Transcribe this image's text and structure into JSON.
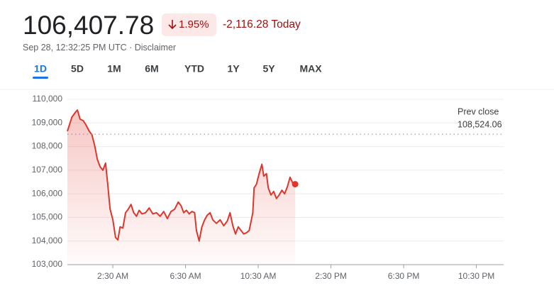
{
  "header": {
    "price": "106,407.78",
    "change_percent": "1.95%",
    "change_today": "-2,116.28 Today",
    "timestamp": "Sep 28, 12:32:25 PM UTC",
    "separator": "·",
    "disclaimer": "Disclaimer"
  },
  "tabs": [
    "1D",
    "5D",
    "1M",
    "6M",
    "YTD",
    "1Y",
    "5Y",
    "MAX"
  ],
  "selected_tab": 0,
  "chart_data": {
    "type": "line",
    "x": [
      0,
      0.25,
      0.45,
      0.55,
      0.7,
      0.87,
      1.0,
      1.2,
      1.35,
      1.5,
      1.65,
      1.8,
      1.95,
      2.1,
      2.22,
      2.35,
      2.5,
      2.65,
      2.78,
      2.9,
      3.05,
      3.2,
      3.35,
      3.5,
      3.65,
      3.8,
      3.95,
      4.1,
      4.3,
      4.5,
      4.7,
      4.9,
      5.1,
      5.3,
      5.5,
      5.7,
      5.9,
      6.1,
      6.25,
      6.4,
      6.55,
      6.7,
      6.85,
      7.0,
      7.1,
      7.25,
      7.4,
      7.55,
      7.7,
      7.85,
      8.0,
      8.2,
      8.4,
      8.6,
      8.8,
      8.95,
      9.1,
      9.25,
      9.4,
      9.55,
      9.7,
      9.85,
      10.0,
      10.2,
      10.27,
      10.4,
      10.55,
      10.7,
      10.8,
      10.95,
      11.05,
      11.2,
      11.35,
      11.5,
      11.65,
      11.8,
      11.95,
      12.1,
      12.25,
      12.4,
      12.53
    ],
    "series": [
      {
        "color": "#e0352b",
        "values": [
          108650,
          109250,
          109460,
          109550,
          109160,
          109100,
          108950,
          108650,
          108500,
          108050,
          107450,
          107150,
          107000,
          107300,
          106400,
          105350,
          104900,
          104150,
          104050,
          104600,
          104550,
          105200,
          105350,
          105550,
          105200,
          105050,
          105300,
          105150,
          105200,
          105400,
          105150,
          105200,
          105050,
          105250,
          104950,
          105250,
          105350,
          105650,
          105500,
          105200,
          105300,
          105150,
          105250,
          105200,
          104450,
          104000,
          104600,
          104900,
          105100,
          105200,
          104900,
          104750,
          104900,
          104650,
          104850,
          105200,
          104650,
          104300,
          104600,
          104450,
          104300,
          104350,
          104450,
          105200,
          106250,
          106400,
          106850,
          107250,
          106750,
          106850,
          106250,
          105950,
          106100,
          105800,
          105950,
          106150,
          106000,
          106300,
          106700,
          106450,
          106407.78
        ]
      }
    ],
    "xlim": [
      0,
      24
    ],
    "xticks": [
      {
        "value": 2.5,
        "label": "2:30 AM"
      },
      {
        "value": 6.5,
        "label": "6:30 AM"
      },
      {
        "value": 10.5,
        "label": "10:30 AM"
      },
      {
        "value": 14.5,
        "label": "2:30 PM"
      },
      {
        "value": 18.5,
        "label": "6:30 PM"
      },
      {
        "value": 22.5,
        "label": "10:30 PM"
      }
    ],
    "ylim": [
      103000,
      110000
    ],
    "yticks": [
      {
        "value": 103000,
        "label": "103,000"
      },
      {
        "value": 104000,
        "label": "104,000"
      },
      {
        "value": 105000,
        "label": "105,000"
      },
      {
        "value": 106000,
        "label": "106,000"
      },
      {
        "value": 107000,
        "label": "107,000"
      },
      {
        "value": 108000,
        "label": "108,000"
      },
      {
        "value": 109000,
        "label": "109,000"
      },
      {
        "value": 110000,
        "label": "110,000"
      }
    ],
    "grid": true,
    "reference_line": {
      "label": "Prev close",
      "value": 108524.06,
      "value_label": "108,524.06"
    }
  }
}
